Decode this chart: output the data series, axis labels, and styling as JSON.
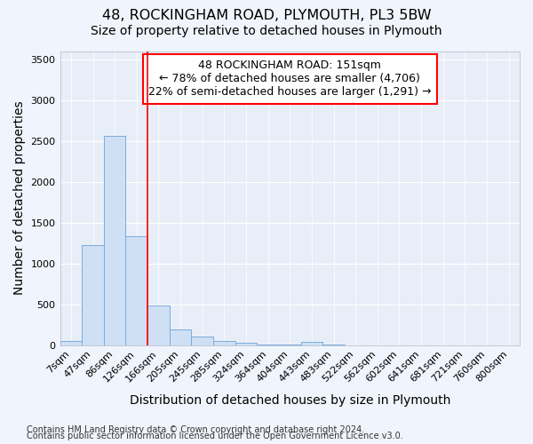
{
  "title": "48, ROCKINGHAM ROAD, PLYMOUTH, PL3 5BW",
  "subtitle": "Size of property relative to detached houses in Plymouth",
  "xlabel": "Distribution of detached houses by size in Plymouth",
  "ylabel": "Number of detached properties",
  "bar_labels": [
    "7sqm",
    "47sqm",
    "86sqm",
    "126sqm",
    "166sqm",
    "205sqm",
    "245sqm",
    "285sqm",
    "324sqm",
    "364sqm",
    "404sqm",
    "443sqm",
    "483sqm",
    "522sqm",
    "562sqm",
    "602sqm",
    "641sqm",
    "681sqm",
    "721sqm",
    "760sqm",
    "800sqm"
  ],
  "bar_values": [
    50,
    1220,
    2560,
    1330,
    490,
    195,
    105,
    50,
    28,
    10,
    5,
    40,
    3,
    0,
    0,
    0,
    0,
    0,
    0,
    0,
    0
  ],
  "bar_color": "#cfe0f5",
  "bar_edge_color": "#7aacda",
  "ylim": [
    0,
    3600
  ],
  "yticks": [
    0,
    500,
    1000,
    1500,
    2000,
    2500,
    3000,
    3500
  ],
  "red_line_x": 3.5,
  "annotation_line1": "48 ROCKINGHAM ROAD: 151sqm",
  "annotation_line2": "← 78% of detached houses are smaller (4,706)",
  "annotation_line3": "22% of semi-detached houses are larger (1,291) →",
  "footnote1": "Contains HM Land Registry data © Crown copyright and database right 2024.",
  "footnote2": "Contains public sector information licensed under the Open Government Licence v3.0.",
  "bg_color": "#f0f4fc",
  "plot_bg_color": "#e8eef8",
  "grid_color": "#ffffff",
  "title_fontsize": 11.5,
  "subtitle_fontsize": 10,
  "axis_label_fontsize": 10,
  "tick_fontsize": 8,
  "footnote_fontsize": 7,
  "annotation_fontsize": 9
}
